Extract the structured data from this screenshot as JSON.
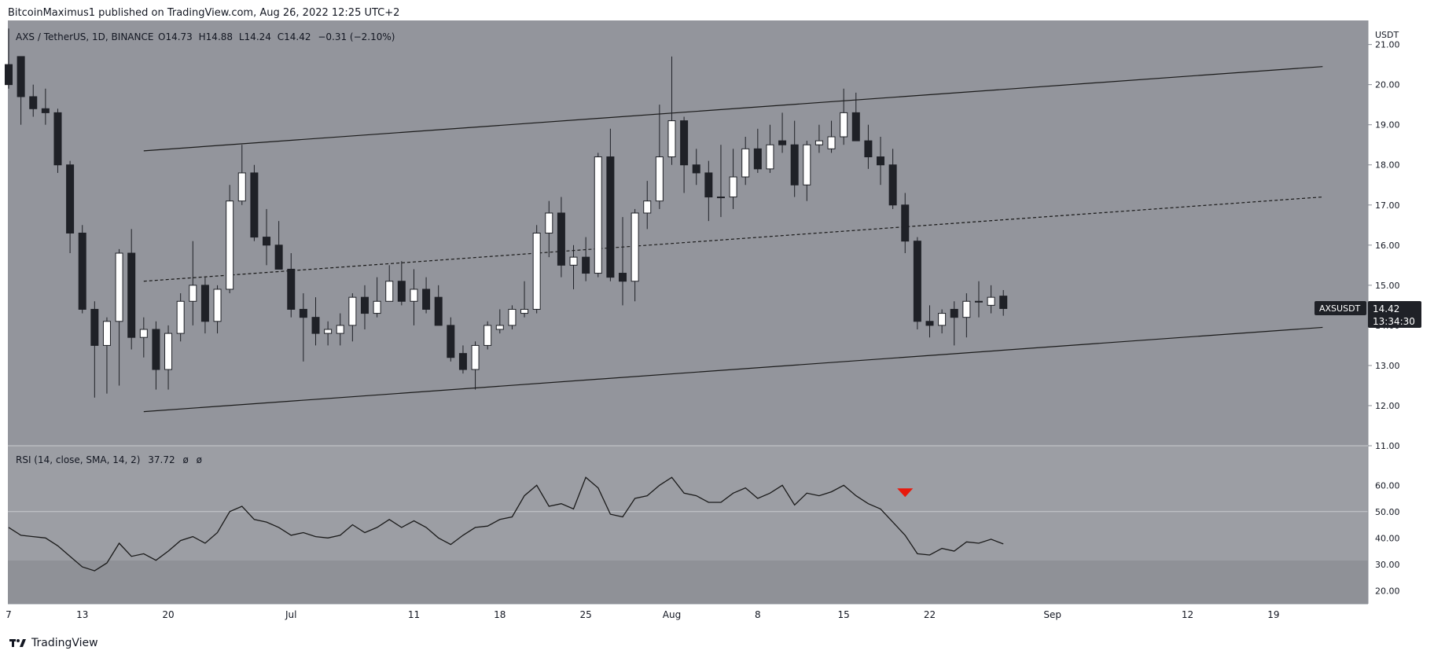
{
  "header": {
    "published_text": "BitcoinMaximus1 published on TradingView.com, Aug 26, 2022 12:25 UTC+2"
  },
  "footer": {
    "brand": "TradingView"
  },
  "colors": {
    "panel_bg": "#93959c",
    "rsi_bg": "#9c9ea4",
    "rsi_band_low": "#8f9197",
    "bull_fill": "#ffffff",
    "bear_fill": "#1f2127",
    "line": "#1a1a1a",
    "marker": "#e8190c"
  },
  "chart_data": {
    "type": "candlestick",
    "symbol": "AXS / TetherUS, 1D, BINANCE",
    "ohlc_label": {
      "O": "14.73",
      "H": "14.88",
      "L": "14.24",
      "C": "14.42",
      "change": "−0.31 (−2.10%)"
    },
    "currency_label": "USDT",
    "price_axis": {
      "range": [
        11.0,
        21.6
      ],
      "ticks": [
        "21.00",
        "20.00",
        "19.00",
        "18.00",
        "17.00",
        "16.00",
        "15.00",
        "14.00",
        "13.00",
        "12.00",
        "11.00"
      ]
    },
    "last_price": {
      "ticker": "AXSUSDT",
      "price": "14.42",
      "countdown": "13:34:30"
    },
    "time_axis": {
      "start_day": 7,
      "ticks": [
        {
          "day": 7,
          "label": "7"
        },
        {
          "day": 13,
          "label": "13"
        },
        {
          "day": 20,
          "label": "20"
        },
        {
          "day": 30,
          "label": "Jul"
        },
        {
          "day": 40,
          "label": "11"
        },
        {
          "day": 47,
          "label": "18"
        },
        {
          "day": 54,
          "label": "25"
        },
        {
          "day": 61,
          "label": "Aug"
        },
        {
          "day": 68,
          "label": "8"
        },
        {
          "day": 75,
          "label": "15"
        },
        {
          "day": 82,
          "label": "22"
        },
        {
          "day": 92,
          "label": "Sep"
        },
        {
          "day": 103,
          "label": "12"
        },
        {
          "day": 110,
          "label": "19"
        }
      ]
    },
    "candles": [
      [
        7,
        20.5,
        21.4,
        19.9,
        20.0
      ],
      [
        8,
        20.7,
        20.7,
        19.0,
        19.7
      ],
      [
        9,
        19.7,
        20.0,
        19.2,
        19.4
      ],
      [
        10,
        19.4,
        19.9,
        19.0,
        19.3
      ],
      [
        11,
        19.3,
        19.4,
        17.8,
        18.0
      ],
      [
        12,
        18.0,
        18.1,
        15.8,
        16.3
      ],
      [
        13,
        16.3,
        16.5,
        14.3,
        14.4
      ],
      [
        14,
        14.4,
        14.6,
        12.2,
        13.5
      ],
      [
        15,
        13.5,
        14.2,
        12.3,
        14.1
      ],
      [
        16,
        14.1,
        15.9,
        12.5,
        15.8
      ],
      [
        17,
        15.8,
        16.4,
        13.4,
        13.7
      ],
      [
        18,
        13.7,
        14.2,
        13.2,
        13.9
      ],
      [
        19,
        13.9,
        14.1,
        12.4,
        12.9
      ],
      [
        20,
        12.9,
        14.0,
        12.4,
        13.8
      ],
      [
        21,
        13.8,
        14.8,
        13.6,
        14.6
      ],
      [
        22,
        14.6,
        16.1,
        14.0,
        15.0
      ],
      [
        23,
        15.0,
        15.2,
        13.8,
        14.1
      ],
      [
        24,
        14.1,
        15.0,
        13.8,
        14.9
      ],
      [
        25,
        14.9,
        17.5,
        14.8,
        17.1
      ],
      [
        26,
        17.1,
        18.5,
        17.0,
        17.8
      ],
      [
        27,
        17.8,
        18.0,
        16.1,
        16.2
      ],
      [
        28,
        16.2,
        16.9,
        15.5,
        16.0
      ],
      [
        29,
        16.0,
        16.6,
        15.4,
        15.4
      ],
      [
        30,
        15.4,
        15.8,
        14.2,
        14.4
      ],
      [
        31,
        14.4,
        14.8,
        13.1,
        14.2
      ],
      [
        32,
        14.2,
        14.7,
        13.5,
        13.8
      ],
      [
        33,
        13.8,
        14.1,
        13.5,
        13.9
      ],
      [
        34,
        13.8,
        14.3,
        13.5,
        14.0
      ],
      [
        35,
        14.0,
        14.8,
        13.6,
        14.7
      ],
      [
        36,
        14.7,
        15.0,
        13.9,
        14.3
      ],
      [
        37,
        14.3,
        15.2,
        14.2,
        14.6
      ],
      [
        38,
        14.6,
        15.5,
        14.6,
        15.1
      ],
      [
        39,
        15.1,
        15.6,
        14.5,
        14.6
      ],
      [
        40,
        14.6,
        15.4,
        14.0,
        14.9
      ],
      [
        41,
        14.9,
        15.2,
        14.3,
        14.4
      ],
      [
        42,
        14.7,
        15.0,
        14.0,
        14.0
      ],
      [
        43,
        14.0,
        14.2,
        13.1,
        13.2
      ],
      [
        44,
        13.3,
        13.5,
        12.8,
        12.9
      ],
      [
        45,
        12.9,
        13.6,
        12.4,
        13.5
      ],
      [
        46,
        13.5,
        14.1,
        13.4,
        14.0
      ],
      [
        47,
        13.9,
        14.4,
        13.8,
        14.0
      ],
      [
        48,
        14.0,
        14.5,
        13.9,
        14.4
      ],
      [
        49,
        14.3,
        15.1,
        14.2,
        14.4
      ],
      [
        50,
        14.4,
        16.5,
        14.3,
        16.3
      ],
      [
        51,
        16.3,
        17.1,
        15.7,
        16.8
      ],
      [
        52,
        16.8,
        17.2,
        15.2,
        15.5
      ],
      [
        53,
        15.5,
        16.0,
        14.9,
        15.7
      ],
      [
        54,
        15.7,
        16.2,
        15.1,
        15.3
      ],
      [
        55,
        15.3,
        18.3,
        15.2,
        18.2
      ],
      [
        56,
        18.2,
        18.9,
        15.1,
        15.2
      ],
      [
        57,
        15.3,
        16.7,
        14.5,
        15.1
      ],
      [
        58,
        15.1,
        16.9,
        14.6,
        16.8
      ],
      [
        59,
        16.8,
        17.6,
        16.4,
        17.1
      ],
      [
        60,
        17.1,
        19.5,
        16.9,
        18.2
      ],
      [
        61,
        18.2,
        20.7,
        18.0,
        19.1
      ],
      [
        62,
        19.1,
        19.2,
        17.3,
        18.0
      ],
      [
        63,
        18.0,
        18.4,
        17.5,
        17.8
      ],
      [
        64,
        17.8,
        18.1,
        16.6,
        17.2
      ],
      [
        65,
        17.2,
        18.5,
        16.7,
        17.2
      ],
      [
        66,
        17.2,
        18.4,
        16.9,
        17.7
      ],
      [
        67,
        17.7,
        18.7,
        17.5,
        18.4
      ],
      [
        68,
        18.4,
        18.9,
        17.8,
        17.9
      ],
      [
        69,
        17.9,
        19.0,
        17.8,
        18.5
      ],
      [
        70,
        18.6,
        19.3,
        18.3,
        18.5
      ],
      [
        71,
        18.5,
        19.1,
        17.2,
        17.5
      ],
      [
        72,
        17.5,
        18.6,
        17.1,
        18.5
      ],
      [
        73,
        18.5,
        19.0,
        18.3,
        18.6
      ],
      [
        74,
        18.4,
        19.1,
        18.3,
        18.7
      ],
      [
        75,
        18.7,
        19.9,
        18.5,
        19.3
      ],
      [
        76,
        19.3,
        19.8,
        18.6,
        18.6
      ],
      [
        77,
        18.6,
        19.0,
        17.9,
        18.2
      ],
      [
        78,
        18.2,
        18.7,
        17.5,
        18.0
      ],
      [
        79,
        18.0,
        18.4,
        16.9,
        17.0
      ],
      [
        80,
        17.0,
        17.3,
        15.8,
        16.1
      ],
      [
        81,
        16.1,
        16.2,
        13.9,
        14.1
      ],
      [
        82,
        14.1,
        14.5,
        13.7,
        14.0
      ],
      [
        83,
        14.0,
        14.4,
        13.8,
        14.3
      ],
      [
        84,
        14.4,
        14.6,
        13.5,
        14.2
      ],
      [
        85,
        14.2,
        14.8,
        13.7,
        14.6
      ],
      [
        86,
        14.6,
        15.1,
        14.2,
        14.6
      ],
      [
        87,
        14.5,
        15.0,
        14.3,
        14.7
      ],
      [
        88,
        14.73,
        14.88,
        14.24,
        14.42
      ]
    ],
    "channel": {
      "upper": [
        [
          18,
          18.35
        ],
        [
          114,
          20.45
        ]
      ],
      "lower": [
        [
          18,
          11.85
        ],
        [
          114,
          13.95
        ]
      ],
      "mid_dashed": [
        [
          18,
          15.1
        ],
        [
          114,
          17.2
        ]
      ]
    },
    "rsi": {
      "label": "RSI (14, close, SMA, 14, 2)",
      "value": "37.72",
      "extra": [
        "ø",
        "ø"
      ],
      "range": [
        15,
        75
      ],
      "ticks": [
        "60.00",
        "50.00",
        "40.00",
        "30.00",
        "20.00"
      ],
      "line_levels": [
        50
      ],
      "band": [
        0,
        30
      ],
      "series": [
        [
          7,
          44
        ],
        [
          8,
          41
        ],
        [
          9,
          40.5
        ],
        [
          10,
          40
        ],
        [
          11,
          37
        ],
        [
          12,
          33
        ],
        [
          13,
          29
        ],
        [
          14,
          27.5
        ],
        [
          15,
          30.5
        ],
        [
          16,
          38
        ],
        [
          17,
          33
        ],
        [
          18,
          34
        ],
        [
          19,
          31.5
        ],
        [
          20,
          35
        ],
        [
          21,
          39
        ],
        [
          22,
          40.5
        ],
        [
          23,
          38
        ],
        [
          24,
          42
        ],
        [
          25,
          50
        ],
        [
          26,
          52
        ],
        [
          27,
          47
        ],
        [
          28,
          46
        ],
        [
          29,
          44
        ],
        [
          30,
          41
        ],
        [
          31,
          42
        ],
        [
          32,
          40.5
        ],
        [
          33,
          40
        ],
        [
          34,
          41
        ],
        [
          35,
          45
        ],
        [
          36,
          42
        ],
        [
          37,
          44
        ],
        [
          38,
          47
        ],
        [
          39,
          44
        ],
        [
          40,
          46.5
        ],
        [
          41,
          44
        ],
        [
          42,
          40
        ],
        [
          43,
          37.5
        ],
        [
          44,
          41
        ],
        [
          45,
          44
        ],
        [
          46,
          44.5
        ],
        [
          47,
          47
        ],
        [
          48,
          48
        ],
        [
          49,
          56
        ],
        [
          50,
          60
        ],
        [
          51,
          52
        ],
        [
          52,
          53
        ],
        [
          53,
          51
        ],
        [
          54,
          63
        ],
        [
          55,
          59
        ],
        [
          56,
          49
        ],
        [
          57,
          48
        ],
        [
          58,
          55
        ],
        [
          59,
          56
        ],
        [
          60,
          60
        ],
        [
          61,
          63
        ],
        [
          62,
          57
        ],
        [
          63,
          56
        ],
        [
          64,
          53.5
        ],
        [
          65,
          53.5
        ],
        [
          66,
          57
        ],
        [
          67,
          59
        ],
        [
          68,
          55
        ],
        [
          69,
          57
        ],
        [
          70,
          60
        ],
        [
          71,
          52.5
        ],
        [
          72,
          57
        ],
        [
          73,
          56
        ],
        [
          74,
          57.5
        ],
        [
          75,
          60
        ],
        [
          76,
          56
        ],
        [
          77,
          53
        ],
        [
          78,
          51
        ],
        [
          79,
          46
        ],
        [
          80,
          41
        ],
        [
          81,
          34
        ],
        [
          82,
          33.5
        ],
        [
          83,
          36
        ],
        [
          84,
          35
        ],
        [
          85,
          38.5
        ],
        [
          86,
          38
        ],
        [
          87,
          39.5
        ],
        [
          88,
          37.72
        ]
      ],
      "marker": {
        "day": 80,
        "value": 57
      }
    }
  }
}
